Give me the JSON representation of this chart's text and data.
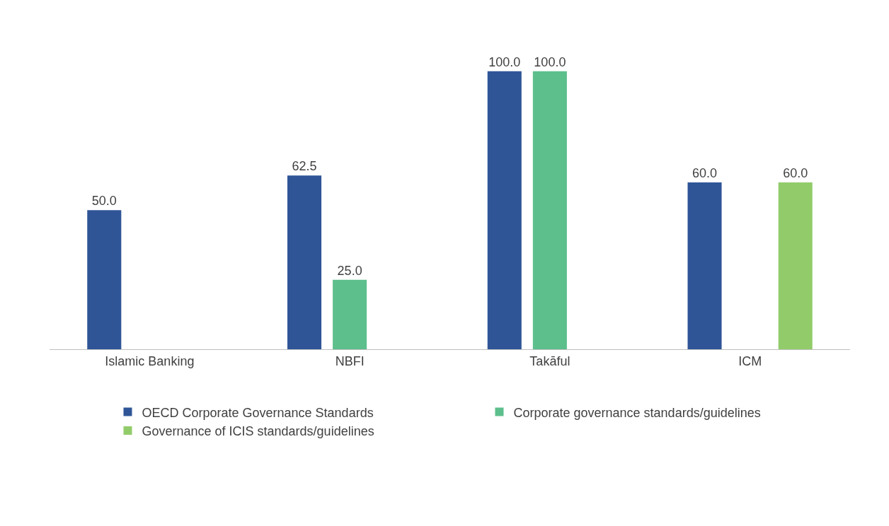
{
  "chart_data": {
    "type": "bar",
    "categories": [
      "Islamic Banking",
      "NBFI",
      "Takāful",
      "ICM"
    ],
    "series": [
      {
        "name": "OECD Corporate Governance Standards",
        "color": "#2f5597",
        "values": [
          50.0,
          62.5,
          100.0,
          60.0
        ],
        "value_labels": [
          "50.0",
          "62.5",
          "100.0",
          "60.0"
        ]
      },
      {
        "name": "Corporate governance standards/guidelines",
        "color": "#5dbf8c",
        "values": [
          null,
          25.0,
          100.0,
          null
        ],
        "value_labels": [
          null,
          "25.0",
          "100.0",
          null
        ]
      },
      {
        "name": "Governance of ICIS standards/guidelines",
        "color": "#92cc6a",
        "values": [
          null,
          null,
          null,
          60.0
        ],
        "value_labels": [
          null,
          null,
          null,
          "60.0"
        ]
      }
    ],
    "legend": "bottom"
  }
}
